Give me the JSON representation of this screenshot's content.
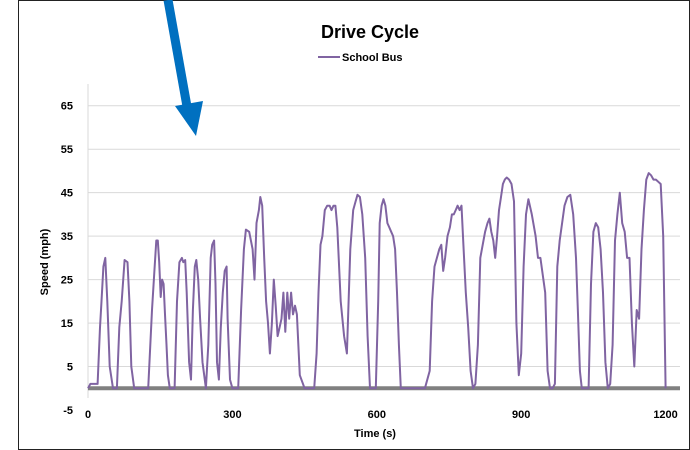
{
  "chart_data": {
    "type": "line",
    "title": "Drive Cycle",
    "xlabel": "Time (s)",
    "ylabel": "Speed (mph)",
    "xlim": [
      0,
      1230
    ],
    "ylim": [
      -5,
      70
    ],
    "xticks": [
      0,
      300,
      600,
      900,
      1200
    ],
    "yticks": [
      -5,
      5,
      15,
      25,
      35,
      45,
      55,
      65
    ],
    "grid": "horizontal",
    "legend": "top-center",
    "series": [
      {
        "name": "School Bus",
        "color": "#8064A2",
        "x": [
          0,
          5,
          10,
          15,
          20,
          25,
          28,
          32,
          36,
          40,
          45,
          52,
          60,
          65,
          70,
          76,
          82,
          86,
          90,
          96,
          110,
          125,
          133,
          138,
          142,
          145,
          148,
          151,
          154,
          157,
          160,
          163,
          166,
          170,
          175,
          180,
          185,
          190,
          195,
          198,
          202,
          205,
          210,
          214,
          218,
          222,
          225,
          229,
          233,
          238,
          245,
          250,
          255,
          258,
          262,
          265,
          268,
          272,
          276,
          280,
          284,
          288,
          290,
          295,
          300,
          308,
          312,
          318,
          324,
          328,
          335,
          342,
          346,
          350,
          355,
          358,
          362,
          366,
          370,
          374,
          378,
          382,
          386,
          390,
          394,
          398,
          402,
          406,
          410,
          414,
          418,
          422,
          426,
          430,
          434,
          440,
          450,
          460,
          470,
          475,
          479,
          483,
          487,
          492,
          497,
          502,
          506,
          510,
          514,
          518,
          525,
          532,
          538,
          545,
          551,
          556,
          560,
          565,
          570,
          576,
          581,
          586,
          592,
          598,
          603,
          606,
          610,
          614,
          618,
          622,
          626,
          630,
          634,
          638,
          642,
          646,
          650,
          655,
          660,
          665,
          670,
          678,
          690,
          700,
          710,
          715,
          720,
          725,
          730,
          734,
          738,
          742,
          747,
          752,
          756,
          760,
          764,
          768,
          772,
          776,
          780,
          785,
          790,
          795,
          800,
          805,
          810,
          815,
          820,
          825,
          830,
          834,
          838,
          842,
          846,
          850,
          854,
          858,
          862,
          866,
          870,
          875,
          880,
          885,
          890,
          895,
          900,
          905,
          910,
          915,
          922,
          930,
          935,
          940,
          945,
          950,
          955,
          960,
          965,
          970,
          975,
          980,
          985,
          990,
          996,
          1002,
          1008,
          1014,
          1018,
          1022,
          1026,
          1030,
          1035,
          1040,
          1045,
          1050,
          1055,
          1060,
          1065,
          1070,
          1075,
          1080,
          1085,
          1090,
          1095,
          1100,
          1105,
          1110,
          1115,
          1120,
          1125,
          1130,
          1135,
          1140,
          1145,
          1150,
          1155,
          1160,
          1165,
          1170,
          1175,
          1180,
          1185,
          1190,
          1195,
          1200
        ],
        "y": [
          0,
          1,
          1,
          1,
          1,
          14,
          20,
          28,
          30,
          20,
          5,
          0,
          0,
          14,
          20,
          29.5,
          29,
          20,
          5,
          0,
          0,
          0,
          18,
          27,
          34,
          34,
          29,
          21,
          25,
          24,
          17,
          10,
          3,
          0,
          0,
          0,
          20,
          29,
          30,
          29,
          29.5,
          22,
          6,
          2,
          18,
          28,
          29.5,
          25,
          16,
          6,
          0,
          10,
          30,
          33,
          34,
          24,
          6,
          2,
          14,
          22,
          27,
          28,
          16,
          2,
          0,
          0,
          0,
          18,
          32,
          36.5,
          36,
          32,
          25,
          38,
          41,
          44,
          42,
          30,
          20,
          15,
          8,
          15,
          25,
          19,
          12,
          14,
          16,
          22,
          13,
          22,
          16,
          22,
          17,
          19,
          17,
          3,
          0,
          0,
          0,
          8,
          22,
          33,
          35,
          41,
          42,
          42,
          41,
          42,
          42,
          37,
          20,
          12,
          8,
          32,
          41,
          43,
          44.5,
          44,
          40,
          30,
          12,
          0,
          0,
          0,
          20,
          38,
          42,
          43.5,
          42,
          38,
          37,
          36,
          35,
          32,
          22,
          10,
          0,
          0,
          0,
          0,
          0,
          0,
          0,
          0,
          4,
          20,
          28,
          30,
          32,
          33,
          27,
          30,
          35,
          37,
          40,
          40,
          41,
          42,
          41,
          42,
          33,
          22,
          14,
          4,
          0,
          1,
          10,
          30,
          33,
          36,
          38,
          39,
          36,
          34,
          30,
          35,
          41,
          44,
          47,
          48,
          48.5,
          48,
          47,
          43,
          15,
          3,
          8,
          28,
          40,
          43.5,
          40,
          35,
          30,
          30,
          26,
          22,
          4,
          0,
          0,
          1,
          28,
          34,
          38,
          42,
          44,
          44.5,
          40,
          30,
          17,
          4,
          0,
          0,
          0,
          0,
          24,
          36,
          38,
          37,
          32,
          22,
          6,
          0,
          1,
          10,
          34,
          40,
          45,
          38,
          36,
          30,
          30,
          15,
          5,
          18,
          16,
          32,
          41,
          48,
          49.5,
          49,
          48,
          48,
          47.5,
          47,
          35,
          0
        ]
      }
    ]
  }
}
